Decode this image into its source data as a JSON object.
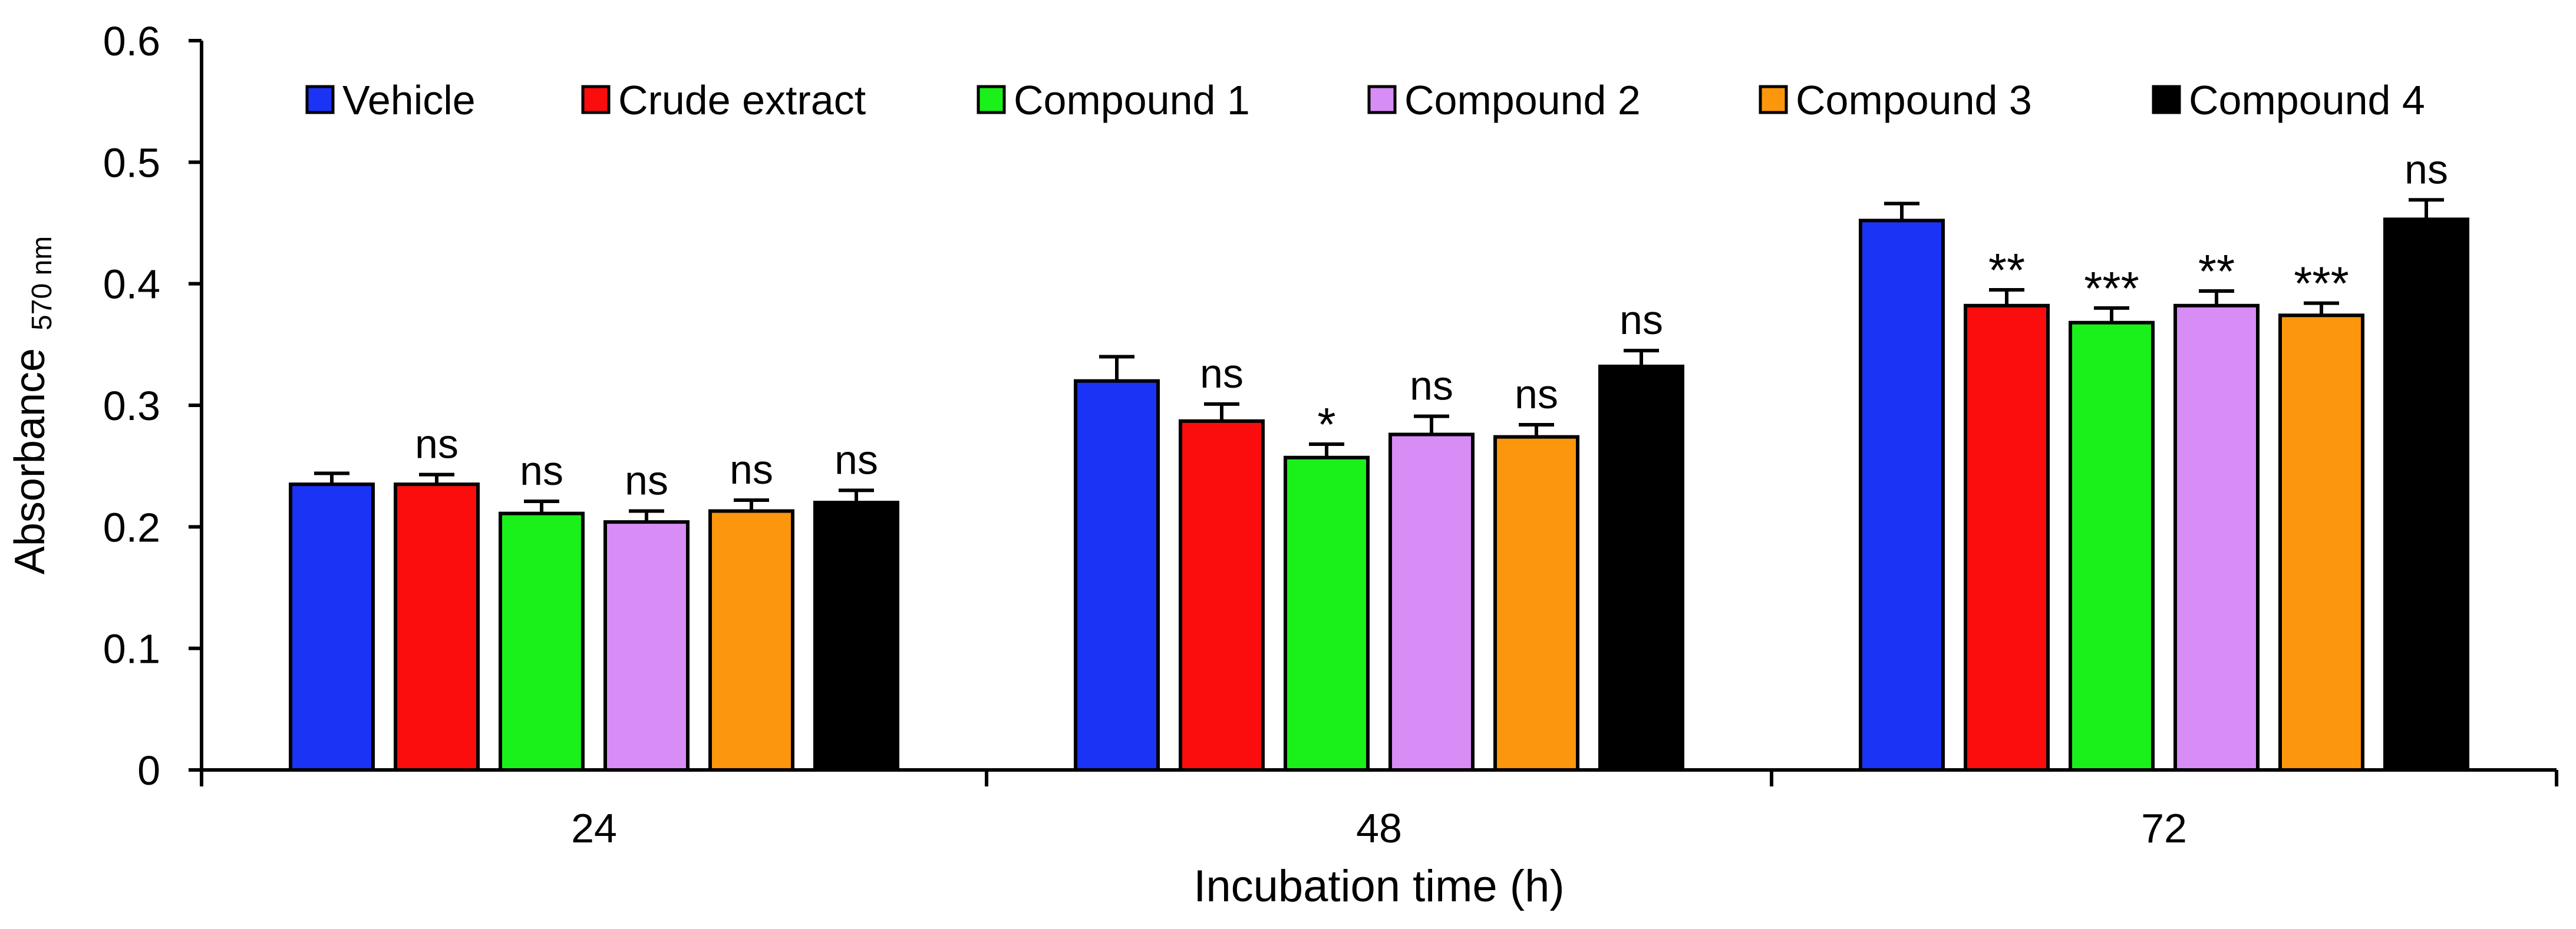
{
  "chart_data": {
    "type": "bar",
    "title": "",
    "xlabel": "Incubation time (h)",
    "ylabel": "Absorbance",
    "ylabel_sub": "570 nm",
    "ylim": [
      0,
      0.6
    ],
    "yticks": [
      "0",
      "0.1",
      "0.2",
      "0.3",
      "0.4",
      "0.5",
      "0.6"
    ],
    "categories": [
      "24",
      "48",
      "72"
    ],
    "legend_position": "top",
    "series": [
      {
        "name": "Vehicle",
        "color": "#1b33f5",
        "values": [
          0.235,
          0.32,
          0.452
        ],
        "errors": [
          0.009,
          0.02,
          0.014
        ],
        "labels": [
          "",
          "",
          ""
        ]
      },
      {
        "name": "Crude extract",
        "color": "#fb0d0d",
        "values": [
          0.235,
          0.287,
          0.382
        ],
        "errors": [
          0.008,
          0.014,
          0.013
        ],
        "labels": [
          "ns",
          "ns",
          "**"
        ]
      },
      {
        "name": "Compound 1",
        "color": "#1af01a",
        "values": [
          0.211,
          0.257,
          0.368
        ],
        "errors": [
          0.01,
          0.011,
          0.012
        ],
        "labels": [
          "ns",
          "*",
          "***"
        ]
      },
      {
        "name": "Compound 2",
        "color": "#d88cf6",
        "values": [
          0.204,
          0.276,
          0.382
        ],
        "errors": [
          0.009,
          0.015,
          0.012
        ],
        "labels": [
          "ns",
          "ns",
          "**"
        ]
      },
      {
        "name": "Compound 3",
        "color": "#fc960c",
        "values": [
          0.213,
          0.274,
          0.374
        ],
        "errors": [
          0.009,
          0.01,
          0.01
        ],
        "labels": [
          "ns",
          "ns",
          "***"
        ]
      },
      {
        "name": "Compound 4",
        "color": "#000000",
        "values": [
          0.22,
          0.332,
          0.453
        ],
        "errors": [
          0.01,
          0.013,
          0.016
        ],
        "labels": [
          "ns",
          "ns",
          "ns"
        ]
      }
    ]
  }
}
